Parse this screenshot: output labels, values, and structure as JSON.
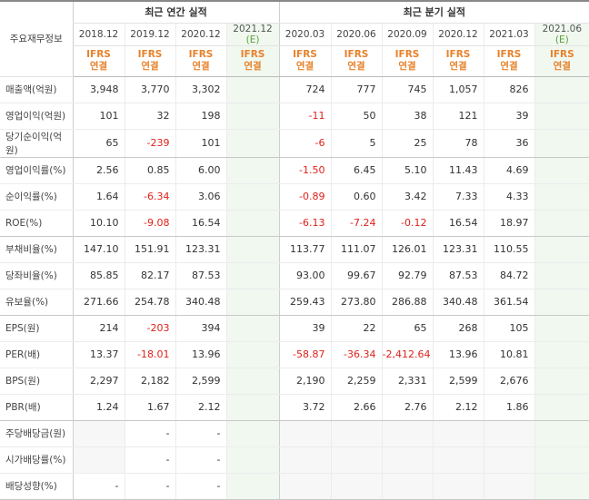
{
  "header": {
    "corner_label": "주요재무정보",
    "annual_group": "최근 연간 실적",
    "quarterly_group": "최근 분기 실적",
    "annual_periods": [
      "2018.12",
      "2019.12",
      "2020.12",
      "2021.12"
    ],
    "estimate_mark": "(E)",
    "quarterly_periods": [
      "2020.03",
      "2020.06",
      "2020.09",
      "2020.12",
      "2021.03",
      "2021.06"
    ],
    "ifrs_line1": "IFRS",
    "ifrs_line2": "연결"
  },
  "rows": [
    {
      "label": "매출액(억원)",
      "annual": [
        "3,948",
        "3,770",
        "3,302",
        ""
      ],
      "quarterly": [
        "724",
        "777",
        "745",
        "1,057",
        "826",
        ""
      ]
    },
    {
      "label": "영업이익(억원)",
      "annual": [
        "101",
        "32",
        "198",
        ""
      ],
      "quarterly": [
        "-11",
        "50",
        "38",
        "121",
        "39",
        ""
      ]
    },
    {
      "label": "당기순이익(억원)",
      "annual": [
        "65",
        "-239",
        "101",
        ""
      ],
      "quarterly": [
        "-6",
        "5",
        "25",
        "78",
        "36",
        ""
      ]
    },
    {
      "label": "영업이익률(%)",
      "annual": [
        "2.56",
        "0.85",
        "6.00",
        ""
      ],
      "quarterly": [
        "-1.50",
        "6.45",
        "5.10",
        "11.43",
        "4.69",
        ""
      ]
    },
    {
      "label": "순이익률(%)",
      "annual": [
        "1.64",
        "-6.34",
        "3.06",
        ""
      ],
      "quarterly": [
        "-0.89",
        "0.60",
        "3.42",
        "7.33",
        "4.33",
        ""
      ]
    },
    {
      "label": "ROE(%)",
      "annual": [
        "10.10",
        "-9.08",
        "16.54",
        ""
      ],
      "quarterly": [
        "-6.13",
        "-7.24",
        "-0.12",
        "16.54",
        "18.97",
        ""
      ]
    },
    {
      "label": "부채비율(%)",
      "annual": [
        "147.10",
        "151.91",
        "123.31",
        ""
      ],
      "quarterly": [
        "113.77",
        "111.07",
        "126.01",
        "123.31",
        "110.55",
        ""
      ]
    },
    {
      "label": "당좌비율(%)",
      "annual": [
        "85.85",
        "82.17",
        "87.53",
        ""
      ],
      "quarterly": [
        "93.00",
        "99.67",
        "92.79",
        "87.53",
        "84.72",
        ""
      ]
    },
    {
      "label": "유보율(%)",
      "annual": [
        "271.66",
        "254.78",
        "340.48",
        ""
      ],
      "quarterly": [
        "259.43",
        "273.80",
        "286.88",
        "340.48",
        "361.54",
        ""
      ]
    },
    {
      "label": "EPS(원)",
      "annual": [
        "214",
        "-203",
        "394",
        ""
      ],
      "quarterly": [
        "39",
        "22",
        "65",
        "268",
        "105",
        ""
      ]
    },
    {
      "label": "PER(배)",
      "annual": [
        "13.37",
        "-18.01",
        "13.96",
        ""
      ],
      "quarterly": [
        "-58.87",
        "-36.34",
        "-2,412.64",
        "13.96",
        "10.81",
        ""
      ]
    },
    {
      "label": "BPS(원)",
      "annual": [
        "2,297",
        "2,182",
        "2,599",
        ""
      ],
      "quarterly": [
        "2,190",
        "2,259",
        "2,331",
        "2,599",
        "2,676",
        ""
      ]
    },
    {
      "label": "PBR(배)",
      "annual": [
        "1.24",
        "1.67",
        "2.12",
        ""
      ],
      "quarterly": [
        "3.72",
        "2.66",
        "2.76",
        "2.12",
        "1.86",
        ""
      ]
    },
    {
      "label": "주당배당금(원)",
      "annual": [
        "",
        "-",
        "-",
        ""
      ],
      "quarterly": [
        "",
        "",
        "",
        "",
        "",
        ""
      ]
    },
    {
      "label": "시가배당률(%)",
      "annual": [
        "",
        "-",
        "-",
        ""
      ],
      "quarterly": [
        "",
        "",
        "",
        "",
        "",
        ""
      ]
    },
    {
      "label": "배당성향(%)",
      "annual": [
        "-",
        "-",
        "-",
        ""
      ],
      "quarterly": [
        "",
        "",
        "",
        "",
        "",
        ""
      ]
    }
  ],
  "colors": {
    "negative": "#e0211b",
    "ifrs": "#e8822b",
    "estimate_bg": "#f0f8f0",
    "estimate_mark": "#5a9e3a"
  }
}
